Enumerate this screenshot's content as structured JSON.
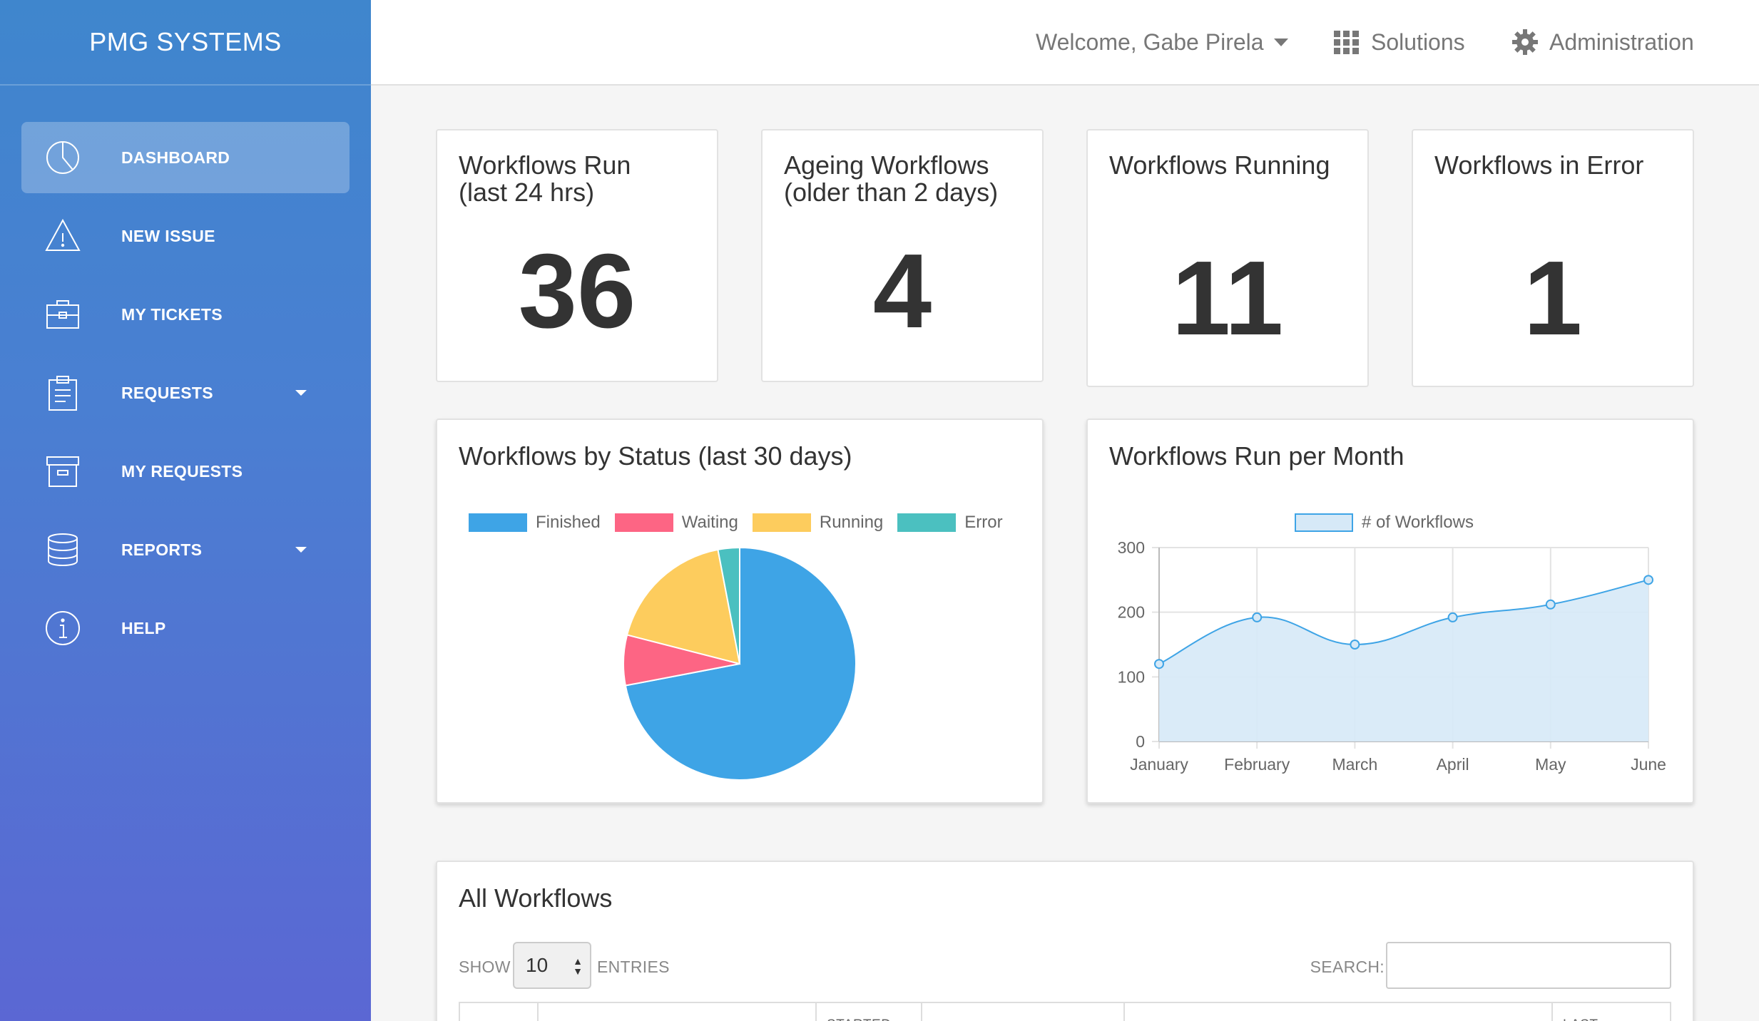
{
  "brand": "PMG SYSTEMS",
  "nav": [
    {
      "label": "DASHBOARD",
      "icon": "pie-chart-icon",
      "active": true
    },
    {
      "label": "NEW ISSUE",
      "icon": "warning-icon"
    },
    {
      "label": "MY TICKETS",
      "icon": "briefcase-icon"
    },
    {
      "label": "REQUESTS",
      "icon": "clipboard-icon",
      "dropdown": true
    },
    {
      "label": "MY REQUESTS",
      "icon": "archive-icon"
    },
    {
      "label": "REPORTS",
      "icon": "database-icon",
      "dropdown": true
    },
    {
      "label": "HELP",
      "icon": "info-icon"
    }
  ],
  "topbar": {
    "welcome": "Welcome, Gabe Pirela",
    "solutions": "Solutions",
    "administration": "Administration"
  },
  "stats": [
    {
      "title": "Workflows Run\n(last 24 hrs)",
      "value": "36"
    },
    {
      "title": "Ageing Workflows\n(older than 2 days)",
      "value": "4"
    },
    {
      "title": "Workflows Running",
      "value": "11"
    },
    {
      "title": "Workflows in Error",
      "value": "1"
    }
  ],
  "status_panel": {
    "title": "Workflows by Status (last 30 days)"
  },
  "month_panel": {
    "title": "Workflows Run per Month"
  },
  "chart_data": [
    {
      "type": "pie",
      "labels": [
        "Finished",
        "Waiting",
        "Running",
        "Error"
      ],
      "values": [
        72,
        7,
        18,
        3
      ],
      "colors": [
        "#3ea4e6",
        "#fd6584",
        "#fdcc5d",
        "#4bc0c0"
      ],
      "legend": "top"
    },
    {
      "type": "area",
      "categories": [
        "January",
        "February",
        "March",
        "April",
        "May",
        "June"
      ],
      "series": [
        {
          "name": "# of Workflows",
          "values": [
            120,
            192,
            150,
            192,
            212,
            250
          ]
        }
      ],
      "ylim": [
        0,
        300
      ],
      "yticks": [
        0,
        100,
        200,
        300
      ],
      "grid": true,
      "legend": "top",
      "colors": {
        "line": "#3ea4e6",
        "fill": "#d6e9f7"
      }
    }
  ],
  "table": {
    "title": "All Workflows",
    "show_label": "SHOW",
    "entries_value": "10",
    "entries_label": "ENTRIES",
    "search_label": "SEARCH:",
    "headers": [
      "",
      "",
      "STARTED",
      "",
      "",
      "LAST"
    ]
  }
}
